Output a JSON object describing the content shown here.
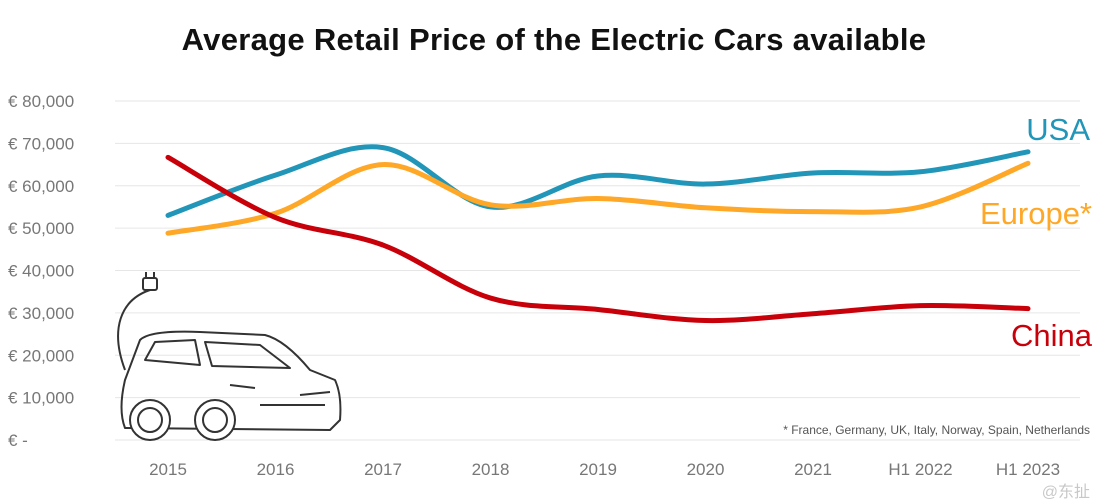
{
  "chart_data": {
    "type": "line",
    "title": "Average Retail Price of the Electric Cars available",
    "xlabel": "",
    "ylabel": "",
    "categories": [
      "2015",
      "2016",
      "2017",
      "2018",
      "2019",
      "2020",
      "2021",
      "H1 2022",
      "H1 2023"
    ],
    "y_ticks": [
      "€ -",
      "€ 10,000",
      "€ 20,000",
      "€ 30,000",
      "€ 40,000",
      "€ 50,000",
      "€ 60,000",
      "€ 70,000",
      "€ 80,000"
    ],
    "ylim": [
      0,
      80000
    ],
    "grid": true,
    "series": [
      {
        "name": "USA",
        "color": "#2196b8",
        "values": [
          53000,
          62500,
          69000,
          55000,
          62300,
          60400,
          63000,
          63300,
          68000
        ]
      },
      {
        "name": "Europe*",
        "color": "#ffa726",
        "values": [
          48800,
          53500,
          65000,
          55500,
          57000,
          54800,
          53900,
          55000,
          65300
        ]
      },
      {
        "name": "China",
        "color": "#c8000a",
        "values": [
          66700,
          52500,
          46000,
          33500,
          30800,
          28200,
          29800,
          31700,
          31000
        ]
      }
    ],
    "footnote": "* France, Germany, UK, Italy, Norway, Spain, Netherlands",
    "watermark": "@东扯"
  }
}
